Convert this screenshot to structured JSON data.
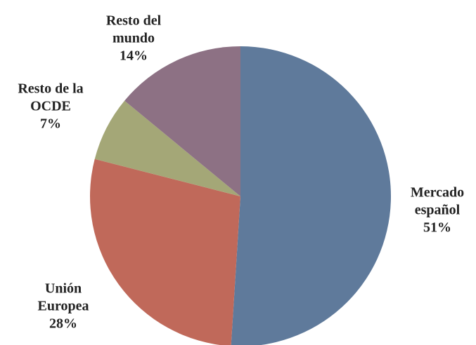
{
  "chart_data": {
    "type": "pie",
    "categories": [
      "Mercado español",
      "Unión Europea",
      "Resto de la OCDE",
      "Resto del mundo"
    ],
    "values": [
      51,
      28,
      7,
      14
    ],
    "value_labels": [
      "51%",
      "28%",
      "7%",
      "14%"
    ],
    "colors": [
      "#5f7a9b",
      "#c0695a",
      "#a4a777",
      "#8d7184"
    ]
  }
}
